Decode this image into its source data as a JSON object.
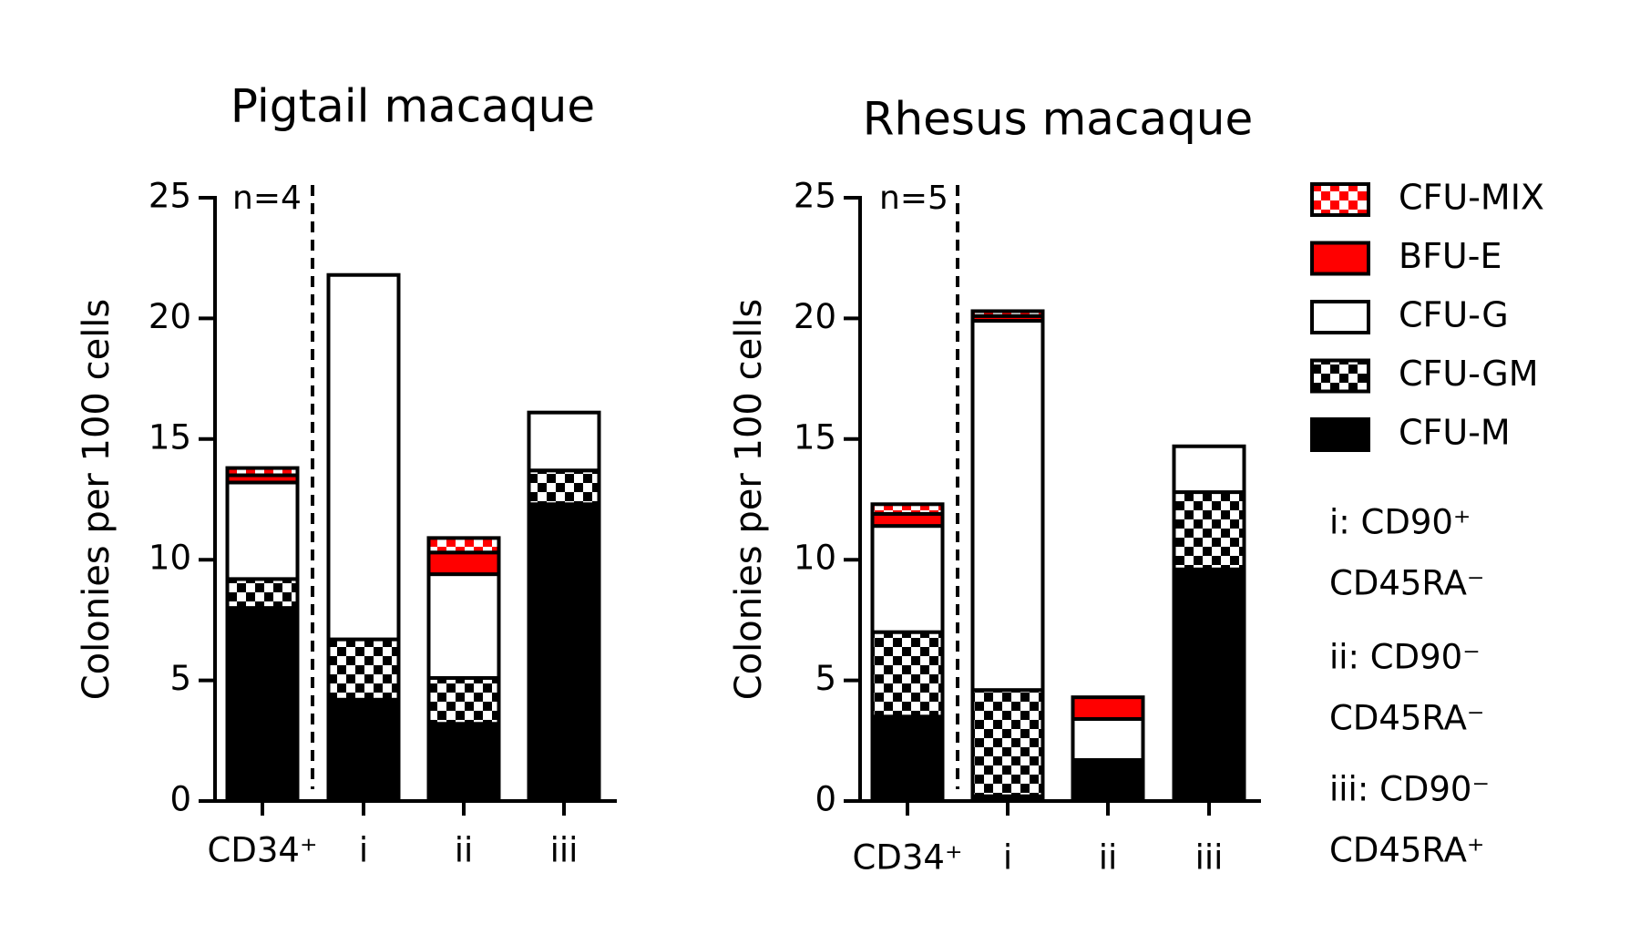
{
  "chart_data": [
    {
      "type": "bar",
      "stacked": true,
      "title": "Pigtail macaque",
      "ylabel": "Colonies per 100 cells",
      "annotation": "n=4",
      "categories": [
        "CD34⁺",
        "i",
        "ii",
        "iii"
      ],
      "ylim": [
        0,
        25
      ],
      "yticks": [
        0,
        5,
        10,
        15,
        20,
        25
      ],
      "series": [
        {
          "name": "CFU-M",
          "color": "#000000",
          "pattern": "solid",
          "values": [
            8.0,
            4.2,
            3.2,
            12.3
          ]
        },
        {
          "name": "CFU-GM",
          "color": "#000000",
          "pattern": "checker",
          "values": [
            1.2,
            2.5,
            1.9,
            1.4
          ]
        },
        {
          "name": "CFU-G",
          "color": "#ffffff",
          "pattern": "solid",
          "values": [
            4.0,
            15.1,
            4.3,
            2.4
          ]
        },
        {
          "name": "BFU-E",
          "color": "#ff0000",
          "pattern": "solid",
          "values": [
            0.3,
            0,
            0.9,
            0
          ]
        },
        {
          "name": "CFU-MIX",
          "color": "#ff0000",
          "pattern": "checker",
          "values": [
            0.3,
            0,
            0.6,
            0
          ]
        }
      ]
    },
    {
      "type": "bar",
      "stacked": true,
      "title": "Rhesus macaque",
      "ylabel": "Colonies per 100 cells",
      "annotation": "n=5",
      "categories": [
        "CD34⁺",
        "i",
        "ii",
        "iii"
      ],
      "ylim": [
        0,
        25
      ],
      "yticks": [
        0,
        5,
        10,
        15,
        20,
        25
      ],
      "series": [
        {
          "name": "CFU-M",
          "color": "#000000",
          "pattern": "solid",
          "values": [
            3.5,
            0.2,
            1.7,
            9.6
          ]
        },
        {
          "name": "CFU-GM",
          "color": "#000000",
          "pattern": "checker",
          "values": [
            3.5,
            4.4,
            0,
            3.2
          ]
        },
        {
          "name": "CFU-G",
          "color": "#ffffff",
          "pattern": "solid",
          "values": [
            4.4,
            15.3,
            1.7,
            1.9
          ]
        },
        {
          "name": "BFU-E",
          "color": "#ff0000",
          "pattern": "solid",
          "values": [
            0.5,
            0.2,
            0.9,
            0
          ]
        },
        {
          "name": "CFU-MIX",
          "color": "#ff0000",
          "pattern": "checker",
          "values": [
            0.4,
            0.2,
            0,
            0
          ]
        }
      ],
      "notes": [
        "i: CD90⁺",
        "CD45RA⁻",
        "ii: CD90⁻",
        "CD45RA⁻",
        "iii: CD90⁻",
        "CD45RA⁺"
      ]
    }
  ]
}
